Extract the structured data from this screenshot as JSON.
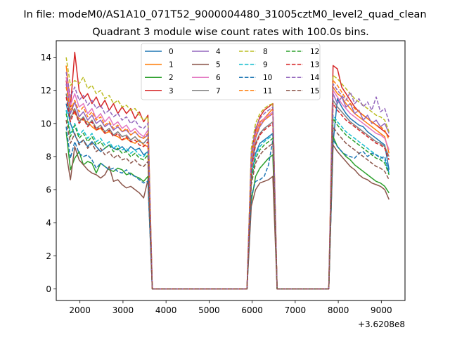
{
  "chart_data": {
    "type": "line",
    "suptitle": "In file: modeM0/AS1A10_071T52_9000004480_31005cztM0_level2_quad_clean",
    "title": "Quadrant 3 module wise count rates with 100.0s bins.",
    "xlabel": "",
    "ylabel": "",
    "x_offset_label": "+3.6208e8",
    "xlim": [
      1450,
      9550
    ],
    "ylim": [
      -0.7,
      15.0
    ],
    "x_ticks": [
      2000,
      3000,
      4000,
      5000,
      6000,
      7000,
      8000,
      9000
    ],
    "y_ticks": [
      0,
      2,
      4,
      6,
      8,
      10,
      12,
      14
    ],
    "grid": false,
    "legend": {
      "placement": "top-center",
      "columns": 4
    },
    "x": [
      1680,
      1780,
      1880,
      1980,
      2080,
      2180,
      2280,
      2380,
      2480,
      2580,
      2680,
      2780,
      2880,
      2980,
      3080,
      3180,
      3280,
      3380,
      3480,
      3580,
      3680,
      3780,
      5880,
      5980,
      6080,
      6180,
      6280,
      6380,
      6480,
      6580,
      7780,
      7880,
      7980,
      8080,
      8180,
      8280,
      8380,
      8480,
      8580,
      8680,
      8780,
      8880,
      8980,
      9080,
      9180
    ],
    "series": [
      {
        "name": "0",
        "color": "#1f77b4",
        "dash": false,
        "values": [
          11.2,
          10.0,
          9.3,
          8.8,
          9.0,
          8.6,
          8.9,
          8.6,
          8.3,
          8.5,
          8.7,
          8.5,
          8.4,
          8.6,
          8.3,
          8.6,
          8.4,
          8.5,
          8.1,
          8.3,
          0.0,
          0.0,
          0.0,
          6.8,
          8.2,
          8.8,
          9.0,
          9.2,
          9.4,
          0.0,
          0.0,
          8.8,
          11.5,
          11.0,
          10.6,
          10.3,
          10.1,
          9.9,
          9.8,
          9.5,
          9.3,
          9.1,
          8.9,
          8.7,
          7.2
        ]
      },
      {
        "name": "1",
        "color": "#ff7f0e",
        "dash": false,
        "values": [
          13.5,
          11.2,
          10.6,
          10.3,
          10.2,
          10.1,
          9.8,
          9.6,
          9.7,
          9.4,
          9.5,
          9.3,
          9.2,
          9.0,
          9.1,
          8.9,
          8.8,
          9.0,
          8.7,
          8.6,
          0.0,
          0.0,
          0.0,
          7.8,
          9.4,
          10.1,
          10.3,
          10.6,
          10.9,
          0.0,
          0.0,
          12.2,
          11.8,
          11.6,
          11.2,
          10.9,
          10.6,
          10.4,
          10.2,
          10.0,
          9.8,
          9.6,
          9.4,
          9.2,
          8.2
        ]
      },
      {
        "name": "2",
        "color": "#2ca02c",
        "dash": false,
        "values": [
          9.5,
          7.2,
          7.9,
          8.3,
          7.5,
          7.7,
          7.6,
          7.0,
          7.6,
          7.4,
          7.2,
          7.1,
          7.3,
          7.2,
          6.9,
          7.0,
          6.8,
          6.7,
          6.5,
          6.8,
          0.0,
          0.0,
          0.0,
          5.3,
          6.8,
          7.3,
          7.6,
          7.9,
          8.1,
          0.0,
          0.0,
          9.2,
          8.6,
          8.3,
          8.0,
          7.8,
          7.5,
          7.3,
          7.1,
          6.9,
          6.7,
          6.5,
          6.4,
          6.2,
          5.8
        ]
      },
      {
        "name": "3",
        "color": "#d62728",
        "dash": false,
        "values": [
          12.6,
          11.0,
          14.3,
          12.0,
          11.5,
          11.8,
          11.2,
          11.6,
          11.0,
          11.4,
          10.8,
          11.2,
          10.6,
          11.0,
          10.6,
          10.9,
          10.3,
          10.7,
          10.1,
          10.5,
          0.0,
          0.0,
          0.0,
          8.2,
          9.6,
          10.4,
          10.8,
          11.0,
          11.2,
          0.0,
          0.0,
          13.5,
          13.3,
          12.2,
          11.8,
          11.4,
          11.0,
          10.7,
          10.5,
          10.3,
          10.1,
          9.9,
          9.7,
          9.5,
          9.2
        ]
      },
      {
        "name": "4",
        "color": "#9467bd",
        "dash": false,
        "values": [
          12.4,
          10.6,
          11.3,
          10.4,
          10.7,
          10.2,
          10.5,
          10.0,
          10.2,
          9.8,
          10.0,
          9.6,
          9.8,
          9.5,
          9.6,
          9.3,
          9.5,
          9.2,
          9.1,
          9.3,
          0.0,
          0.0,
          0.0,
          7.6,
          9.1,
          9.8,
          10.2,
          10.4,
          10.6,
          0.0,
          0.0,
          11.8,
          11.2,
          11.6,
          11.0,
          11.2,
          10.6,
          10.8,
          10.2,
          10.5,
          10.0,
          10.2,
          9.8,
          10.0,
          9.4
        ]
      },
      {
        "name": "5",
        "color": "#8c564b",
        "dash": false,
        "values": [
          8.2,
          6.6,
          8.6,
          7.8,
          7.5,
          7.2,
          7.0,
          6.9,
          6.7,
          6.9,
          7.4,
          6.5,
          6.6,
          6.3,
          6.1,
          6.2,
          6.0,
          5.8,
          5.5,
          6.6,
          0.0,
          0.0,
          0.0,
          5.0,
          6.0,
          6.4,
          6.5,
          6.6,
          6.8,
          0.0,
          0.0,
          8.7,
          8.3,
          8.0,
          7.7,
          7.4,
          7.2,
          6.9,
          6.7,
          6.6,
          6.4,
          6.3,
          6.2,
          6.0,
          5.4
        ]
      },
      {
        "name": "6",
        "color": "#e377c2",
        "dash": false,
        "values": [
          12.8,
          11.1,
          11.8,
          11.0,
          11.2,
          10.6,
          10.9,
          10.3,
          10.6,
          10.1,
          10.4,
          9.9,
          10.1,
          9.7,
          9.9,
          9.5,
          9.7,
          9.4,
          9.2,
          9.6,
          0.0,
          0.0,
          0.0,
          7.9,
          9.3,
          10.0,
          10.3,
          10.5,
          10.7,
          0.0,
          0.0,
          12.0,
          11.6,
          11.2,
          10.9,
          10.6,
          10.4,
          10.2,
          10.0,
          9.8,
          9.6,
          9.4,
          9.3,
          9.1,
          8.4
        ]
      },
      {
        "name": "7",
        "color": "#7f7f7f",
        "dash": false,
        "values": [
          11.8,
          10.3,
          10.9,
          10.1,
          10.4,
          9.9,
          10.2,
          9.7,
          9.9,
          9.5,
          9.7,
          9.3,
          9.5,
          9.2,
          9.3,
          9.0,
          9.2,
          8.9,
          8.8,
          9.1,
          0.0,
          0.0,
          0.0,
          7.3,
          8.8,
          9.4,
          9.7,
          9.9,
          10.1,
          0.0,
          0.0,
          11.4,
          11.0,
          10.7,
          10.4,
          10.1,
          9.9,
          9.7,
          9.5,
          9.3,
          9.1,
          8.9,
          8.8,
          8.6,
          8.0
        ]
      },
      {
        "name": "8",
        "color": "#bcbd22",
        "dash": true,
        "values": [
          14.0,
          12.3,
          12.6,
          12.4,
          12.8,
          12.1,
          12.3,
          11.8,
          12.0,
          11.5,
          11.7,
          11.2,
          11.4,
          11.0,
          11.1,
          10.8,
          10.9,
          10.5,
          10.2,
          10.4,
          0.0,
          0.0,
          0.0,
          8.5,
          10.0,
          10.6,
          10.9,
          11.1,
          11.2,
          0.0,
          0.0,
          12.9,
          12.7,
          12.4,
          12.1,
          11.8,
          11.5,
          11.3,
          11.1,
          10.9,
          10.7,
          10.5,
          10.4,
          10.2,
          9.5
        ]
      },
      {
        "name": "9",
        "color": "#17becf",
        "dash": true,
        "values": [
          10.8,
          9.4,
          10.0,
          9.3,
          9.6,
          9.1,
          9.4,
          8.9,
          9.1,
          8.7,
          8.9,
          8.5,
          8.7,
          8.4,
          8.5,
          8.2,
          8.4,
          8.1,
          8.0,
          8.3,
          0.0,
          0.0,
          0.0,
          6.7,
          8.1,
          8.6,
          8.9,
          9.1,
          9.3,
          0.0,
          0.0,
          10.5,
          10.1,
          9.8,
          9.5,
          9.3,
          9.1,
          8.9,
          8.7,
          8.5,
          8.3,
          8.1,
          8.0,
          7.8,
          7.0
        ]
      },
      {
        "name": "10",
        "color": "#1f77b4",
        "dash": true,
        "values": [
          9.8,
          7.9,
          8.9,
          8.2,
          8.0,
          8.1,
          7.8,
          7.3,
          7.6,
          7.4,
          7.2,
          7.3,
          7.1,
          7.0,
          7.2,
          6.9,
          6.8,
          6.6,
          6.4,
          6.5,
          0.0,
          0.0,
          0.0,
          5.6,
          6.5,
          6.6,
          6.8,
          7.5,
          9.0,
          0.0,
          0.0,
          9.0,
          8.6,
          8.3,
          8.1,
          8.0,
          7.9,
          8.2,
          8.3,
          8.0,
          8.2,
          8.1,
          7.9,
          8.0,
          7.0
        ]
      },
      {
        "name": "11",
        "color": "#ff7f0e",
        "dash": true,
        "values": [
          12.2,
          10.8,
          11.4,
          10.7,
          11.0,
          10.4,
          10.7,
          10.2,
          10.4,
          9.9,
          10.1,
          9.7,
          9.9,
          9.5,
          9.7,
          9.3,
          9.5,
          9.2,
          9.1,
          9.4,
          0.0,
          0.0,
          0.0,
          7.9,
          9.2,
          9.9,
          10.2,
          10.4,
          10.6,
          0.0,
          0.0,
          12.6,
          12.3,
          11.9,
          11.5,
          11.2,
          10.9,
          10.7,
          10.5,
          10.3,
          10.1,
          9.9,
          9.8,
          9.6,
          9.0
        ]
      },
      {
        "name": "12",
        "color": "#2ca02c",
        "dash": true,
        "values": [
          10.6,
          9.2,
          9.9,
          9.1,
          9.4,
          8.9,
          9.2,
          8.7,
          8.9,
          8.5,
          8.7,
          8.3,
          8.5,
          8.2,
          8.3,
          8.0,
          8.2,
          7.9,
          7.8,
          8.1,
          0.0,
          0.0,
          0.0,
          6.6,
          7.9,
          8.4,
          8.7,
          8.9,
          9.1,
          0.0,
          0.0,
          10.3,
          9.9,
          9.6,
          9.3,
          9.1,
          8.9,
          8.7,
          8.5,
          8.3,
          8.1,
          7.9,
          7.8,
          7.6,
          6.9
        ]
      },
      {
        "name": "13",
        "color": "#d62728",
        "dash": true,
        "values": [
          11.6,
          10.1,
          10.8,
          10.0,
          10.3,
          9.8,
          10.1,
          9.6,
          9.8,
          9.4,
          9.6,
          9.2,
          9.4,
          9.0,
          9.2,
          8.9,
          9.0,
          8.7,
          8.6,
          8.9,
          0.0,
          0.0,
          0.0,
          7.2,
          8.7,
          9.3,
          9.6,
          9.8,
          10.0,
          0.0,
          0.0,
          11.2,
          10.8,
          10.5,
          10.2,
          10.0,
          9.8,
          9.6,
          9.4,
          9.2,
          9.0,
          8.8,
          8.7,
          8.5,
          7.8
        ]
      },
      {
        "name": "14",
        "color": "#9467bd",
        "dash": true,
        "values": [
          13.1,
          11.6,
          12.2,
          11.4,
          11.7,
          11.1,
          11.4,
          10.9,
          11.1,
          10.6,
          10.8,
          10.4,
          10.6,
          10.2,
          10.4,
          10.0,
          10.2,
          9.8,
          9.7,
          10.0,
          0.0,
          0.0,
          0.0,
          8.1,
          9.7,
          10.3,
          10.6,
          10.8,
          11.0,
          0.0,
          0.0,
          12.4,
          12.0,
          11.7,
          11.4,
          11.9,
          11.2,
          11.5,
          11.0,
          11.3,
          10.8,
          11.6,
          10.7,
          10.9,
          10.1
        ]
      },
      {
        "name": "15",
        "color": "#8c564b",
        "dash": true,
        "values": [
          10.2,
          8.8,
          9.4,
          8.7,
          9.0,
          8.5,
          8.8,
          8.3,
          8.5,
          8.1,
          8.3,
          7.9,
          8.1,
          7.8,
          7.9,
          7.6,
          7.8,
          7.5,
          7.4,
          7.7,
          0.0,
          0.0,
          0.0,
          6.3,
          7.6,
          8.1,
          8.4,
          8.6,
          8.8,
          0.0,
          0.0,
          9.8,
          9.4,
          9.1,
          8.8,
          8.6,
          8.4,
          8.2,
          8.0,
          7.8,
          7.6,
          7.4,
          7.3,
          7.1,
          6.6
        ]
      }
    ]
  }
}
